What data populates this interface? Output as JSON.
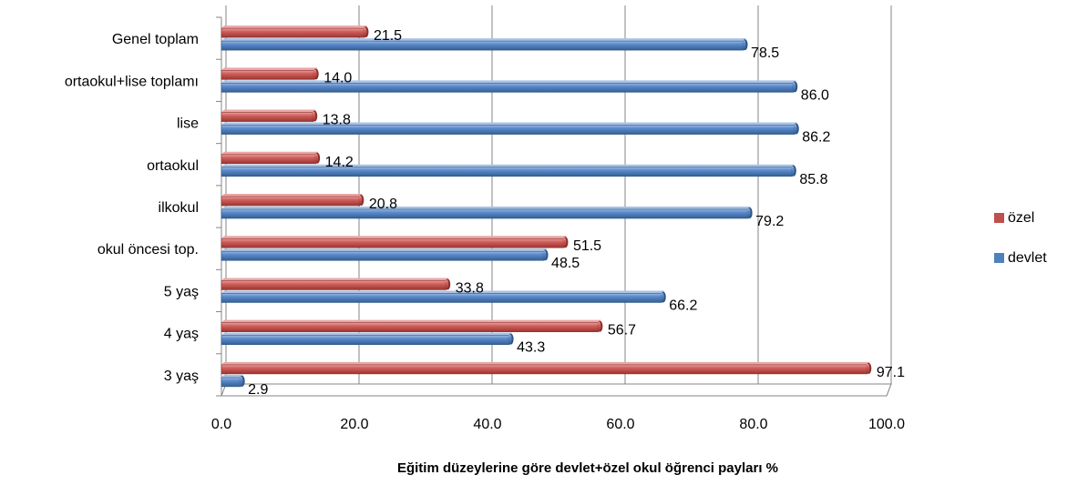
{
  "chart_data": {
    "type": "bar",
    "orientation": "horizontal",
    "title": "Eğitim düzeylerine göre devlet+özel okul öğrenci payları %",
    "categories": [
      "3 yaş",
      "4 yaş",
      "5 yaş",
      "okul öncesi top.",
      "ilkokul",
      "ortaokul",
      "lise",
      "ortaokul+lise toplamı",
      "Genel toplam"
    ],
    "series": [
      {
        "name": "özel",
        "color": "#C0504D",
        "values": [
          97.1,
          56.7,
          33.8,
          51.5,
          20.8,
          14.2,
          13.8,
          14.0,
          21.5
        ]
      },
      {
        "name": "devlet",
        "color": "#4F81BD",
        "values": [
          2.9,
          43.3,
          66.2,
          48.5,
          79.2,
          85.8,
          86.2,
          86.0,
          78.5
        ]
      }
    ],
    "xlim": [
      0,
      100
    ],
    "xticks": [
      "0.0",
      "20.0",
      "40.0",
      "60.0",
      "80.0",
      "100.0"
    ],
    "grid": true,
    "legend_position": "right",
    "value_labels": true,
    "style": "3d-cylinder"
  }
}
